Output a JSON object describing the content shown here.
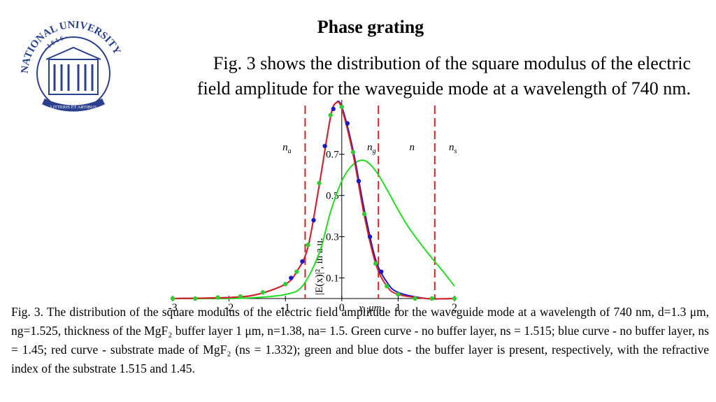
{
  "header": {
    "title": "Phase grating"
  },
  "logo": {
    "top": "NATIONAL UNIVERSITY",
    "name": "LVIV POLYTECHNIC",
    "year": "· 1 8 1 6 ·",
    "motto": "LITTERIS ET ARTIBUS"
  },
  "intro": {
    "lines": [
      "Fig. 3 shows the distribution of the square modulus of the electric",
      "field amplitude for the waveguide mode at a wavelength of 740 nm."
    ]
  },
  "chart_data": {
    "type": "line",
    "x_label": "x, μm",
    "y_label": "|E(x)|², in a.u.",
    "xlim": [
      -3,
      2
    ],
    "ylim": [
      0,
      0.95
    ],
    "xticks": [
      -3,
      -2,
      -1,
      0,
      1,
      2
    ],
    "yticks": [
      0.1,
      0.3,
      0.5,
      0.7
    ],
    "boundaries": [
      -0.65,
      0.65,
      1.65
    ],
    "regions": [
      {
        "label": "n",
        "sub": "a",
        "x": -1.05
      },
      {
        "label": "n",
        "sub": "g",
        "x": 0.45
      },
      {
        "label": "n",
        "x": 1.2
      },
      {
        "label": "n",
        "sub": "s",
        "x": 1.9
      }
    ],
    "region_y": 0.72,
    "series": [
      {
        "name": "green curve",
        "color": "#22dd22",
        "style": "line",
        "x": [
          -3,
          -2,
          -1.5,
          -1,
          -0.7,
          -0.4,
          -0.2,
          0,
          0.2,
          0.4,
          0.6,
          0.8,
          1,
          1.2,
          1.5,
          1.8,
          2
        ],
        "values": [
          0,
          0,
          0.005,
          0.02,
          0.06,
          0.22,
          0.42,
          0.57,
          0.65,
          0.67,
          0.62,
          0.53,
          0.43,
          0.34,
          0.23,
          0.13,
          0.06
        ]
      },
      {
        "name": "blue curve",
        "color": "#1a1acc",
        "style": "line",
        "x": [
          -3,
          -2,
          -1.5,
          -1,
          -0.8,
          -0.6,
          -0.4,
          -0.2,
          -0.1,
          0,
          0.2,
          0.4,
          0.6,
          0.8,
          1,
          1.5,
          2
        ],
        "values": [
          0,
          0.005,
          0.02,
          0.07,
          0.13,
          0.25,
          0.55,
          0.88,
          0.95,
          0.93,
          0.72,
          0.43,
          0.19,
          0.08,
          0.03,
          0,
          0
        ]
      },
      {
        "name": "red curve",
        "color": "#dd2222",
        "style": "line",
        "x": [
          -3,
          -2,
          -1.5,
          -1,
          -0.8,
          -0.6,
          -0.4,
          -0.2,
          -0.1,
          0,
          0.2,
          0.4,
          0.6,
          0.8,
          1,
          1.5,
          2
        ],
        "values": [
          0,
          0.005,
          0.02,
          0.07,
          0.13,
          0.25,
          0.55,
          0.88,
          0.95,
          0.92,
          0.7,
          0.4,
          0.17,
          0.06,
          0.02,
          0,
          0
        ]
      },
      {
        "name": "green dots",
        "color": "#33cc33",
        "style": "dots",
        "x": [
          -3,
          -2.6,
          -2.2,
          -1.8,
          -1.4,
          -1,
          -0.8,
          -0.6,
          -0.4,
          -0.2,
          0,
          0.2,
          0.4,
          0.6,
          0.8,
          1,
          1.3,
          1.6,
          2
        ],
        "values": [
          0,
          0,
          0.005,
          0.01,
          0.03,
          0.07,
          0.13,
          0.26,
          0.56,
          0.89,
          0.93,
          0.71,
          0.41,
          0.17,
          0.06,
          0.02,
          0,
          0,
          0
        ]
      },
      {
        "name": "blue dots",
        "color": "#1a1acc",
        "style": "dots",
        "x": [
          -0.9,
          -0.7,
          -0.5,
          -0.3,
          -0.15,
          0.1,
          0.3,
          0.5,
          0.7
        ],
        "values": [
          0.1,
          0.18,
          0.38,
          0.74,
          0.92,
          0.85,
          0.57,
          0.3,
          0.13
        ]
      }
    ]
  },
  "caption": "Fig. 3. The distribution of the square modulus of the electric field amplitude for the waveguide mode at a wavelength of 740 nm, d=1.3 μm, ng=1.525, thickness of the MgF₂ buffer layer 1 μm, n=1.38, na= 1.5. Green curve - no buffer layer, ns = 1.515; blue curve - no buffer layer, ns = 1.45; red curve - substrate made of MgF₂ (ns = 1.332); green and blue dots - the buffer layer is present, respectively, with the refractive index of the substrate 1.515 and 1.45."
}
